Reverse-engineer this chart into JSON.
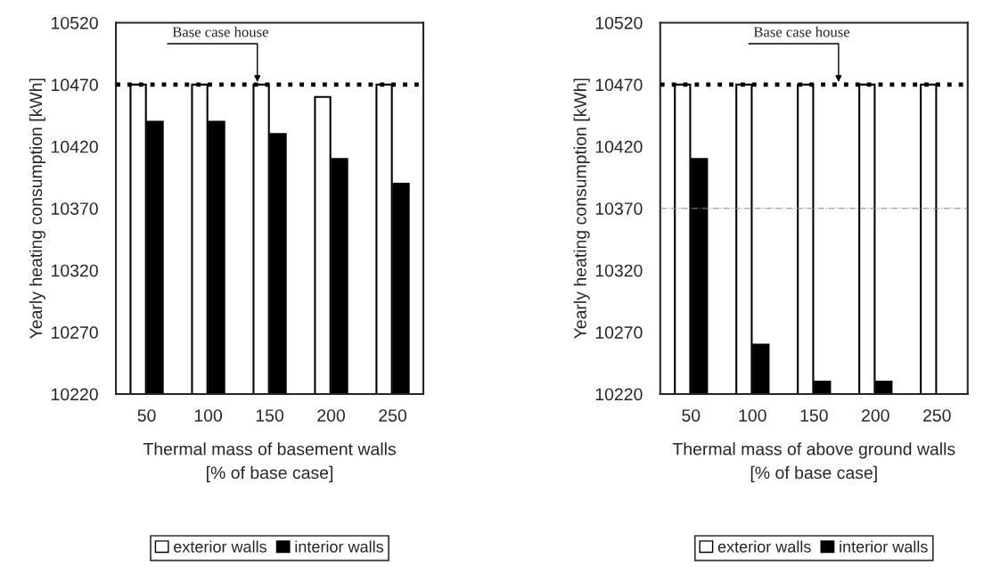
{
  "chart_data": [
    {
      "type": "bar",
      "categories": [
        "50",
        "100",
        "150",
        "200",
        "250"
      ],
      "xlabel": "Thermal mass of basement walls\n[% of base case]",
      "ylabel": "Yearly heating consumption [kWh]",
      "series": [
        {
          "name": "exterior walls",
          "color": "#ffffff",
          "values": [
            10470,
            10470,
            10470,
            10460,
            10470
          ]
        },
        {
          "name": "interior walls",
          "color": "#000000",
          "values": [
            10440,
            10440,
            10430,
            10410,
            10390
          ]
        }
      ],
      "ylim": [
        10220,
        10520
      ],
      "yticks": [
        10220,
        10270,
        10320,
        10370,
        10420,
        10470,
        10520
      ],
      "grid": false,
      "legend": "bottom",
      "ref_lines": [
        {
          "axis": "y",
          "value": 10470,
          "label": "Base case house",
          "color": "#000000",
          "line_style": "dotted"
        }
      ]
    },
    {
      "type": "bar",
      "categories": [
        "50",
        "100",
        "150",
        "200",
        "250"
      ],
      "xlabel": "Thermal mass of above ground walls\n[% of base case]",
      "ylabel": "Yearly heating consumption [kWh]",
      "series": [
        {
          "name": "exterior walls",
          "color": "#ffffff",
          "values": [
            10470,
            10470,
            10470,
            10470,
            10470
          ]
        },
        {
          "name": "interior walls",
          "color": "#000000",
          "values": [
            10410,
            10260,
            10230,
            10230,
            null
          ]
        }
      ],
      "ylim": [
        10220,
        10520
      ],
      "yticks": [
        10220,
        10270,
        10320,
        10370,
        10420,
        10470,
        10520
      ],
      "grid": false,
      "legend": "bottom",
      "ref_lines": [
        {
          "axis": "y",
          "value": 10470,
          "label": "Base case house",
          "color": "#000000",
          "line_style": "dotted"
        },
        {
          "axis": "y",
          "value": 10370,
          "color": "#888888",
          "line_style": "dashdot"
        }
      ]
    }
  ]
}
